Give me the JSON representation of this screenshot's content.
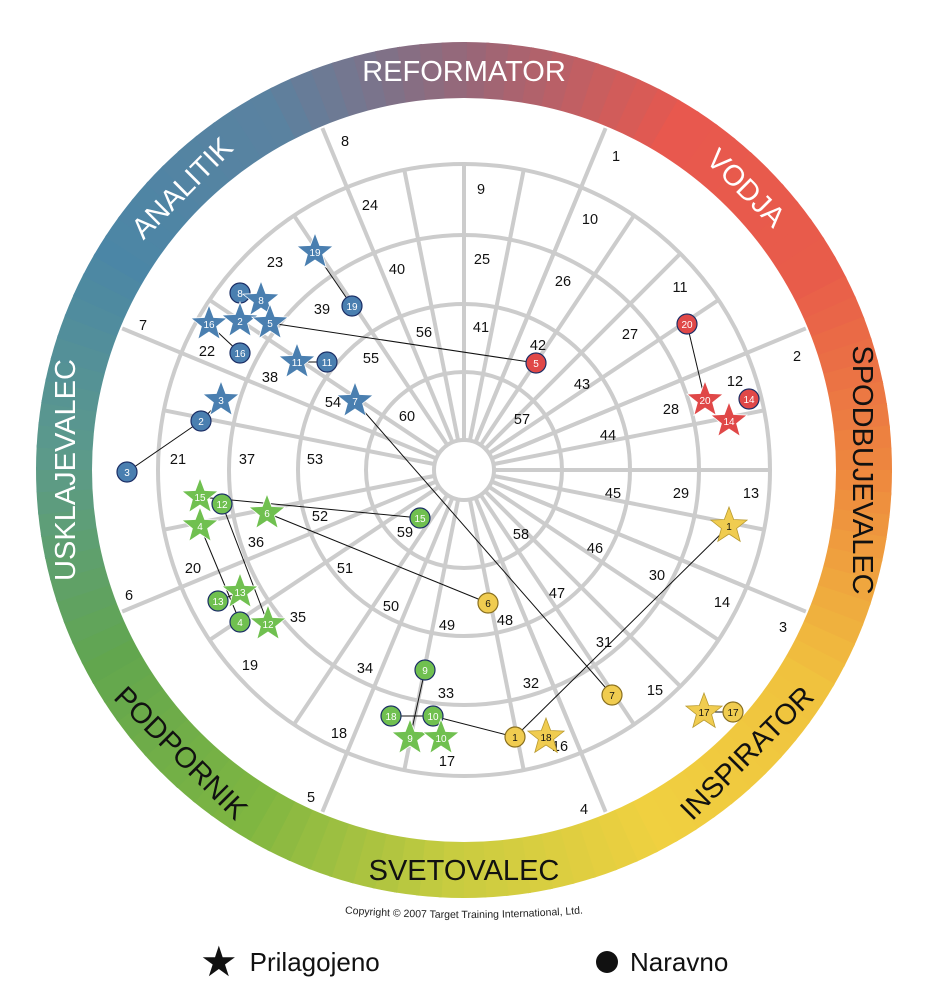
{
  "wheel": {
    "ring_labels": [
      {
        "id": "reformator",
        "text": "REFORMATOR",
        "angle": 0,
        "dark": false
      },
      {
        "id": "vodja",
        "text": "VODJA",
        "angle": 45,
        "dark": false
      },
      {
        "id": "spodbujevalec",
        "text": "SPODBUJEVALEC",
        "angle": 90,
        "dark": true
      },
      {
        "id": "inspirator",
        "text": "INSPIRATOR",
        "angle": 135,
        "dark": true
      },
      {
        "id": "svetovalec",
        "text": "SVETOVALEC",
        "angle": 180,
        "dark": true
      },
      {
        "id": "podpornik",
        "text": "PODPORNIK",
        "angle": 225,
        "dark": true
      },
      {
        "id": "usklajevalec",
        "text": "USKLAJEVALEC",
        "angle": 270,
        "dark": false
      },
      {
        "id": "analitik",
        "text": "ANALITIK",
        "angle": 315,
        "dark": false
      }
    ],
    "ring_gradient": [
      "#9a6677",
      "#e8584e",
      "#e85c4a",
      "#ee8a3e",
      "#f0c23e",
      "#f0d040",
      "#c8cc40",
      "#7fb641",
      "#62a64e",
      "#5c9a8a",
      "#4b86a6",
      "#5a82a0"
    ],
    "colors": {
      "blue": "#4a7fb0",
      "red": "#e04848",
      "yellow": "#f0cc50",
      "green": "#70c050"
    },
    "zone_numbers": [
      "8",
      "1",
      "24",
      "9",
      "10",
      "23",
      "40",
      "25",
      "26",
      "11",
      "39",
      "7",
      "56",
      "41",
      "42",
      "27",
      "2",
      "22",
      "55",
      "43",
      "12",
      "38",
      "28",
      "54",
      "57",
      "60",
      "44",
      "37",
      "53",
      "21",
      "45",
      "29",
      "13",
      "52",
      "36",
      "59",
      "58",
      "46",
      "20",
      "51",
      "30",
      "6",
      "47",
      "14",
      "35",
      "50",
      "49",
      "48",
      "3",
      "31",
      "19",
      "34",
      "32",
      "15",
      "33",
      "18",
      "16",
      "17",
      "5",
      "4"
    ],
    "markers": [
      {
        "n": "19",
        "type": "star",
        "color": "blue"
      },
      {
        "n": "19",
        "type": "circle",
        "color": "blue"
      },
      {
        "n": "8",
        "type": "circle",
        "color": "blue"
      },
      {
        "n": "8",
        "type": "star",
        "color": "blue"
      },
      {
        "n": "16",
        "type": "star",
        "color": "blue"
      },
      {
        "n": "2",
        "type": "star",
        "color": "blue"
      },
      {
        "n": "5",
        "type": "star",
        "color": "blue"
      },
      {
        "n": "16",
        "type": "circle",
        "color": "blue"
      },
      {
        "n": "11",
        "type": "star",
        "color": "blue"
      },
      {
        "n": "11",
        "type": "circle",
        "color": "blue"
      },
      {
        "n": "3",
        "type": "star",
        "color": "blue"
      },
      {
        "n": "2",
        "type": "circle",
        "color": "blue"
      },
      {
        "n": "3",
        "type": "circle",
        "color": "blue"
      },
      {
        "n": "7",
        "type": "star",
        "color": "blue"
      },
      {
        "n": "5",
        "type": "circle",
        "color": "red"
      },
      {
        "n": "20",
        "type": "circle",
        "color": "red"
      },
      {
        "n": "20",
        "type": "star",
        "color": "red"
      },
      {
        "n": "14",
        "type": "circle",
        "color": "red"
      },
      {
        "n": "14",
        "type": "star",
        "color": "red"
      },
      {
        "n": "15",
        "type": "star",
        "color": "green"
      },
      {
        "n": "12",
        "type": "circle",
        "color": "green"
      },
      {
        "n": "4",
        "type": "star",
        "color": "green"
      },
      {
        "n": "6",
        "type": "star",
        "color": "green"
      },
      {
        "n": "15",
        "type": "circle",
        "color": "green"
      },
      {
        "n": "13",
        "type": "circle",
        "color": "green"
      },
      {
        "n": "13",
        "type": "star",
        "color": "green"
      },
      {
        "n": "4",
        "type": "circle",
        "color": "green"
      },
      {
        "n": "12",
        "type": "star",
        "color": "green"
      },
      {
        "n": "9",
        "type": "circle",
        "color": "green"
      },
      {
        "n": "18",
        "type": "circle",
        "color": "green"
      },
      {
        "n": "10",
        "type": "circle",
        "color": "green"
      },
      {
        "n": "9",
        "type": "star",
        "color": "green"
      },
      {
        "n": "10",
        "type": "star",
        "color": "green"
      },
      {
        "n": "1",
        "type": "star",
        "color": "yellow"
      },
      {
        "n": "6",
        "type": "circle",
        "color": "yellow"
      },
      {
        "n": "7",
        "type": "circle",
        "color": "yellow"
      },
      {
        "n": "1",
        "type": "circle",
        "color": "yellow"
      },
      {
        "n": "18",
        "type": "star",
        "color": "yellow"
      },
      {
        "n": "17",
        "type": "star",
        "color": "yellow"
      },
      {
        "n": "17",
        "type": "circle",
        "color": "yellow"
      }
    ],
    "copyright": "Copyright © 2007 Target Training International, Ltd."
  },
  "legend": {
    "adapted_label": "Prilagojeno",
    "natural_label": "Naravno"
  }
}
